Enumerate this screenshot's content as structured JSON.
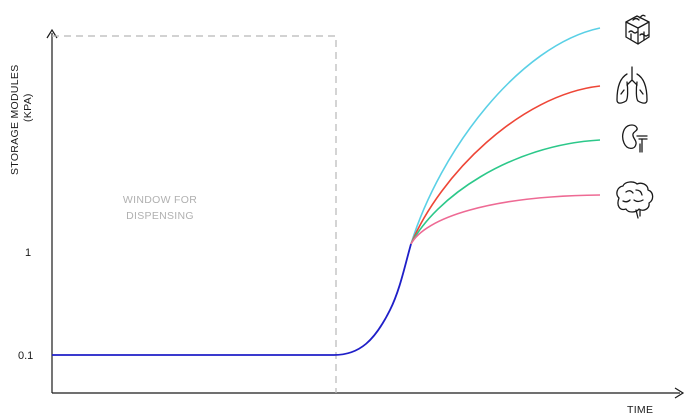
{
  "chart_data": {
    "type": "line",
    "xlabel": "TIME",
    "ylabel_line1": "STORAGE MODULES",
    "ylabel_line2": "(KPA)",
    "yticks": [
      "1",
      "0.1"
    ],
    "annotation": {
      "line1": "WINDOW FOR",
      "line2": "DISPENSING"
    },
    "baseline": {
      "value": 0.1,
      "color": "#1f1fc8"
    },
    "series": [
      {
        "icon": "tissue-block-icon",
        "color": "#5ad0e6"
      },
      {
        "icon": "lungs-icon",
        "color": "#ee4637"
      },
      {
        "icon": "kidney-icon",
        "color": "#2cc88a"
      },
      {
        "icon": "brain-icon",
        "color": "#ee6a94"
      }
    ],
    "colors": {
      "axis": "#1a1a1a",
      "window": "#b8b8b8"
    }
  }
}
